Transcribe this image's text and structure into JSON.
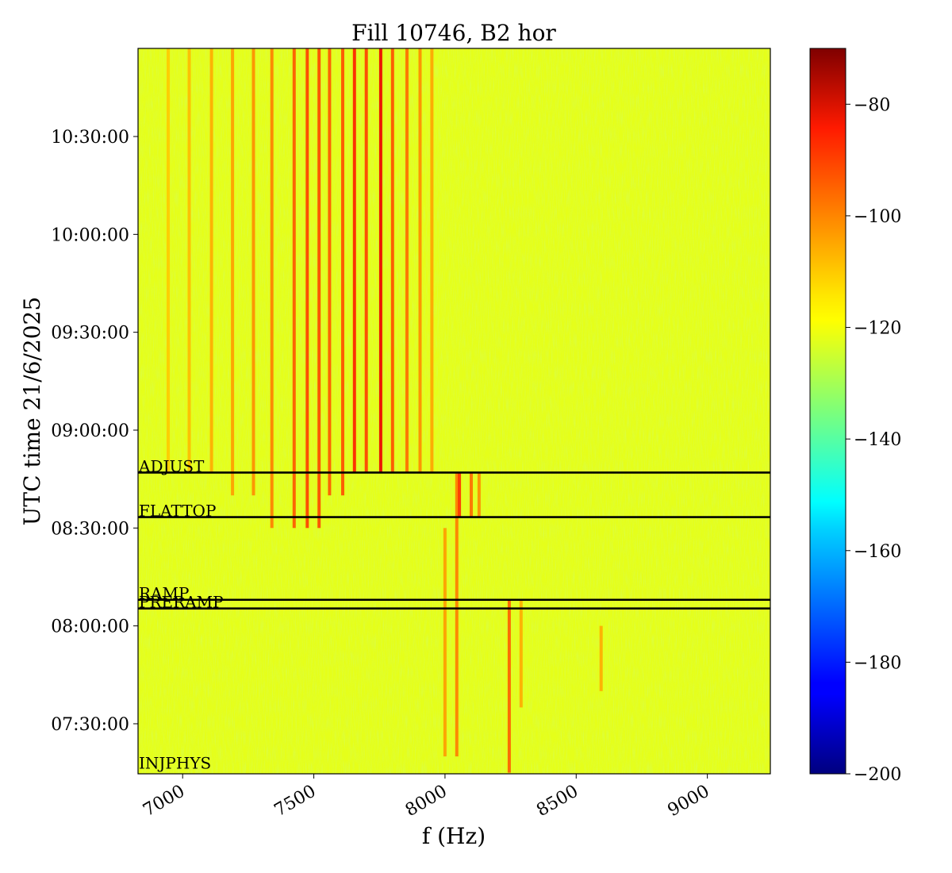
{
  "chart_data": {
    "type": "heatmap",
    "title": "Fill 10746, B2 hor",
    "xlabel": "f (Hz)",
    "ylabel": "UTC time 21/6/2025",
    "xlim": [
      6830,
      9240
    ],
    "ylim_time": [
      "07:14:40",
      "10:57:00"
    ],
    "x_ticks": [
      {
        "value": 7000,
        "label": "7000"
      },
      {
        "value": 7500,
        "label": "7500"
      },
      {
        "value": 8000,
        "label": "8000"
      },
      {
        "value": 8500,
        "label": "8500"
      },
      {
        "value": 9000,
        "label": "9000"
      }
    ],
    "y_ticks": [
      {
        "value": "07:30:00",
        "label": "07:30:00"
      },
      {
        "value": "08:00:00",
        "label": "08:00:00"
      },
      {
        "value": "08:30:00",
        "label": "08:30:00"
      },
      {
        "value": "09:00:00",
        "label": "09:00:00"
      },
      {
        "value": "09:30:00",
        "label": "09:30:00"
      },
      {
        "value": "10:00:00",
        "label": "10:00:00"
      },
      {
        "value": "10:30:00",
        "label": "10:30:00"
      }
    ],
    "colorbar": {
      "colormap": "jet",
      "range": [
        -200,
        -70
      ],
      "ticks": [
        {
          "value": -80,
          "label": "−80"
        },
        {
          "value": -100,
          "label": "−100"
        },
        {
          "value": -120,
          "label": "−120"
        },
        {
          "value": -140,
          "label": "−140"
        },
        {
          "value": -160,
          "label": "−160"
        },
        {
          "value": -180,
          "label": "−180"
        },
        {
          "value": -200,
          "label": "−200"
        }
      ]
    },
    "background_level": -122,
    "events": [
      {
        "label": "ADJUST",
        "time": "08:47:00"
      },
      {
        "label": "FLATTOP",
        "time": "08:33:20"
      },
      {
        "label": "RAMP",
        "time": "08:08:00"
      },
      {
        "label": "PRERAMP",
        "time": "08:05:20"
      },
      {
        "label": "INJPHYS",
        "time": "07:16:00"
      }
    ],
    "spectral_lines": [
      {
        "f": 6945,
        "t_start": "08:47:00",
        "t_end": "10:57:00",
        "level": -112
      },
      {
        "f": 7025,
        "t_start": "08:47:00",
        "t_end": "10:57:00",
        "level": -110
      },
      {
        "f": 7110,
        "t_start": "08:47:00",
        "t_end": "10:57:00",
        "level": -108
      },
      {
        "f": 7190,
        "t_start": "08:40:00",
        "t_end": "10:57:00",
        "level": -106
      },
      {
        "f": 7270,
        "t_start": "08:40:00",
        "t_end": "10:57:00",
        "level": -104
      },
      {
        "f": 7340,
        "t_start": "08:30:00",
        "t_end": "10:57:00",
        "level": -102
      },
      {
        "f": 7425,
        "t_start": "08:30:00",
        "t_end": "10:57:00",
        "level": -97
      },
      {
        "f": 7475,
        "t_start": "08:30:00",
        "t_end": "10:57:00",
        "level": -94
      },
      {
        "f": 7520,
        "t_start": "08:30:00",
        "t_end": "10:57:00",
        "level": -95
      },
      {
        "f": 7560,
        "t_start": "08:40:00",
        "t_end": "10:57:00",
        "level": -97
      },
      {
        "f": 7610,
        "t_start": "08:40:00",
        "t_end": "10:57:00",
        "level": -96
      },
      {
        "f": 7655,
        "t_start": "08:47:00",
        "t_end": "10:57:00",
        "level": -90
      },
      {
        "f": 7700,
        "t_start": "08:47:00",
        "t_end": "10:57:00",
        "level": -94
      },
      {
        "f": 7755,
        "t_start": "08:47:00",
        "t_end": "10:57:00",
        "level": -84
      },
      {
        "f": 7800,
        "t_start": "08:47:00",
        "t_end": "10:57:00",
        "level": -96
      },
      {
        "f": 7855,
        "t_start": "08:47:00",
        "t_end": "10:57:00",
        "level": -100
      },
      {
        "f": 7905,
        "t_start": "08:47:00",
        "t_end": "10:57:00",
        "level": -104
      },
      {
        "f": 7950,
        "t_start": "08:47:00",
        "t_end": "10:57:00",
        "level": -107
      },
      {
        "f": 8000,
        "t_start": "07:20:00",
        "t_end": "08:30:00",
        "level": -106
      },
      {
        "f": 8045,
        "t_start": "07:20:00",
        "t_end": "08:47:00",
        "level": -102
      },
      {
        "f": 8055,
        "t_start": "08:33:20",
        "t_end": "08:47:00",
        "level": -92
      },
      {
        "f": 8100,
        "t_start": "08:33:20",
        "t_end": "08:47:00",
        "level": -100
      },
      {
        "f": 8130,
        "t_start": "08:33:20",
        "t_end": "08:47:00",
        "level": -104
      },
      {
        "f": 8245,
        "t_start": "07:15:00",
        "t_end": "08:08:00",
        "level": -98
      },
      {
        "f": 8290,
        "t_start": "07:35:00",
        "t_end": "08:08:00",
        "level": -108
      },
      {
        "f": 8595,
        "t_start": "07:40:00",
        "t_end": "08:00:00",
        "level": -108
      }
    ]
  }
}
